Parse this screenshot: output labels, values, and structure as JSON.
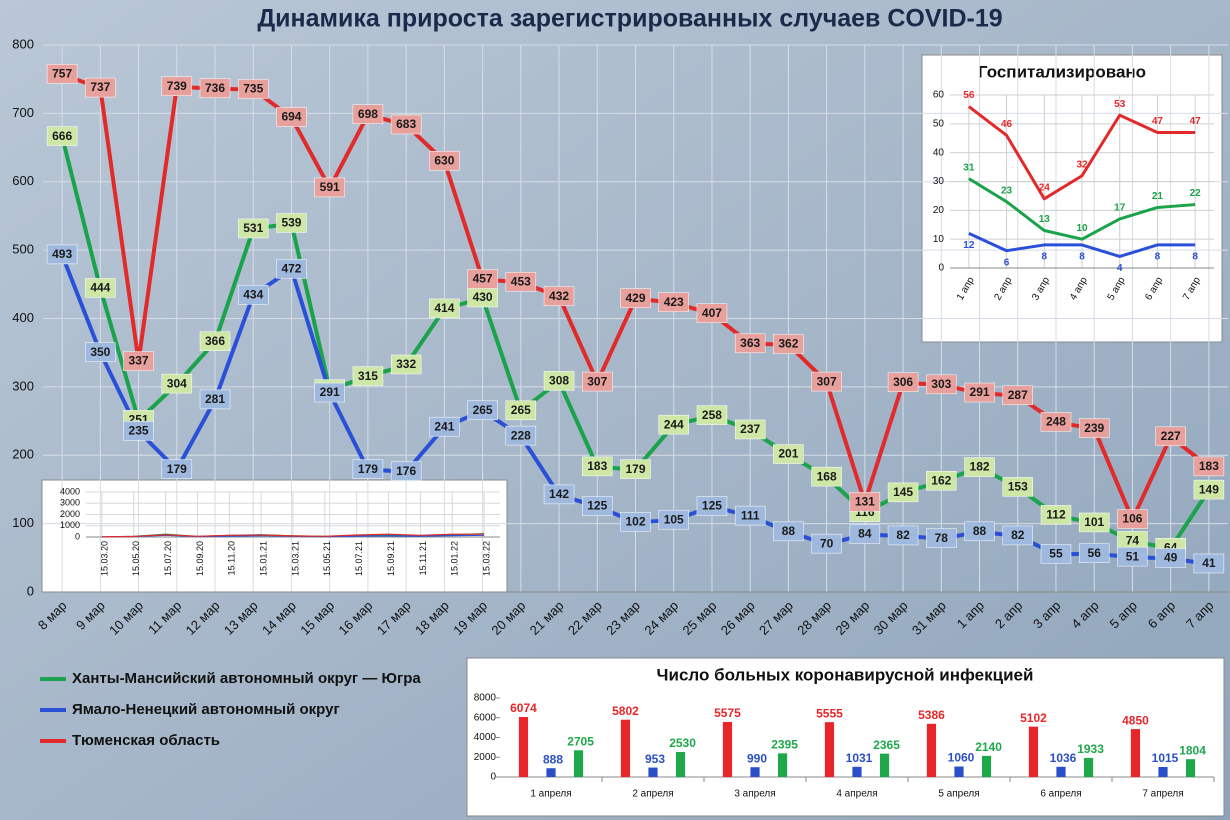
{
  "chart_data": [
    {
      "type": "line",
      "title": "Динамика прироста зарегистрированных случаев COVID-19",
      "categories": [
        "8 мар",
        "9 мар",
        "10 мар",
        "11 мар",
        "12 мар",
        "13 мар",
        "14 мар",
        "15 мар",
        "16 мар",
        "17 мар",
        "18 мар",
        "19 мар",
        "20 мар",
        "21 мар",
        "22 мар",
        "23 мар",
        "24 мар",
        "25 мар",
        "26 мар",
        "27 мар",
        "28 мар",
        "29 мар",
        "30 мар",
        "31 мар",
        "1 апр",
        "2 апр",
        "3 апр",
        "4 апр",
        "5 апр",
        "6 апр",
        "7 апр"
      ],
      "series": [
        {
          "name": "Ханты-Мансийский автономный округ — Югра",
          "color": "#1aa34a",
          "values": [
            666,
            444,
            251,
            304,
            366,
            531,
            539,
            296,
            315,
            332,
            414,
            430,
            265,
            308,
            183,
            179,
            244,
            258,
            237,
            201,
            168,
            116,
            145,
            162,
            182,
            153,
            112,
            101,
            74,
            64,
            149
          ]
        },
        {
          "name": "Ямало-Ненецкий автономный округ",
          "color": "#2a50d8",
          "values": [
            493,
            350,
            235,
            179,
            281,
            434,
            472,
            291,
            179,
            176,
            241,
            265,
            228,
            142,
            125,
            102,
            105,
            125,
            111,
            88,
            70,
            84,
            82,
            78,
            88,
            82,
            55,
            56,
            51,
            49,
            41
          ]
        },
        {
          "name": "Тюменская область",
          "color": "#e22a2a",
          "values": [
            757,
            737,
            337,
            739,
            736,
            735,
            694,
            591,
            698,
            683,
            630,
            457,
            453,
            432,
            307,
            429,
            423,
            407,
            363,
            362,
            307,
            131,
            306,
            303,
            291,
            287,
            248,
            239,
            106,
            227,
            183
          ]
        }
      ],
      "ylim": [
        0,
        800
      ],
      "yticks": [
        0,
        100,
        200,
        300,
        400,
        500,
        600,
        700,
        800
      ],
      "grid": true,
      "legend": "bottom-left"
    },
    {
      "type": "line",
      "title": "Госпитализировано",
      "categories": [
        "1 апр",
        "2 апр",
        "3 апр",
        "4 апр",
        "5 апр",
        "6 апр",
        "7 апр"
      ],
      "series": [
        {
          "color": "#e22a2a",
          "values": [
            56,
            46,
            24,
            32,
            53,
            47,
            47
          ]
        },
        {
          "color": "#1aa34a",
          "values": [
            31,
            23,
            13,
            10,
            17,
            21,
            22
          ]
        },
        {
          "color": "#2a50d8",
          "values": [
            12,
            6,
            8,
            8,
            4,
            8,
            8
          ]
        }
      ],
      "ylim": [
        0,
        60
      ],
      "yticks": [
        0,
        10,
        20,
        30,
        40,
        50,
        60
      ],
      "grid": true
    },
    {
      "type": "line",
      "categories": [
        "15.03.20",
        "15.05.20",
        "15.07.20",
        "15.09.20",
        "15.11.20",
        "15.01.21",
        "15.03.21",
        "15.05.21",
        "15.07.21",
        "15.09.21",
        "15.11.21",
        "15.01.22",
        "15.03.22"
      ],
      "series": [
        {
          "color": "#1aa34a",
          "values": [
            10,
            60,
            250,
            60,
            150,
            200,
            100,
            60,
            150,
            200,
            120,
            200,
            300
          ]
        },
        {
          "color": "#2a50d8",
          "values": [
            5,
            40,
            150,
            40,
            80,
            120,
            60,
            30,
            80,
            100,
            70,
            120,
            150
          ]
        },
        {
          "color": "#e22a2a",
          "values": [
            10,
            50,
            200,
            60,
            150,
            180,
            100,
            60,
            180,
            250,
            150,
            250,
            250
          ]
        }
      ],
      "ylim": [
        0,
        4000
      ],
      "yticks": [
        0,
        1000,
        2000,
        3000,
        4000
      ],
      "grid": true
    },
    {
      "type": "bar",
      "title": "Число больных коронавирусной инфекцией",
      "categories": [
        "1 апреля",
        "2 апреля",
        "3 апреля",
        "4 апреля",
        "5 апреля",
        "6 апреля",
        "7 апреля"
      ],
      "series": [
        {
          "color": "#e8262a",
          "values": [
            6074,
            5802,
            5575,
            5555,
            5386,
            5102,
            4850
          ]
        },
        {
          "color": "#2a4fc8",
          "values": [
            888,
            953,
            990,
            1031,
            1060,
            1036,
            1015
          ]
        },
        {
          "color": "#1fa84a",
          "values": [
            2705,
            2530,
            2395,
            2365,
            2140,
            1933,
            1804
          ]
        }
      ],
      "ylim": [
        0,
        8000
      ],
      "yticks": [
        0,
        2000,
        4000,
        6000,
        8000
      ]
    }
  ]
}
